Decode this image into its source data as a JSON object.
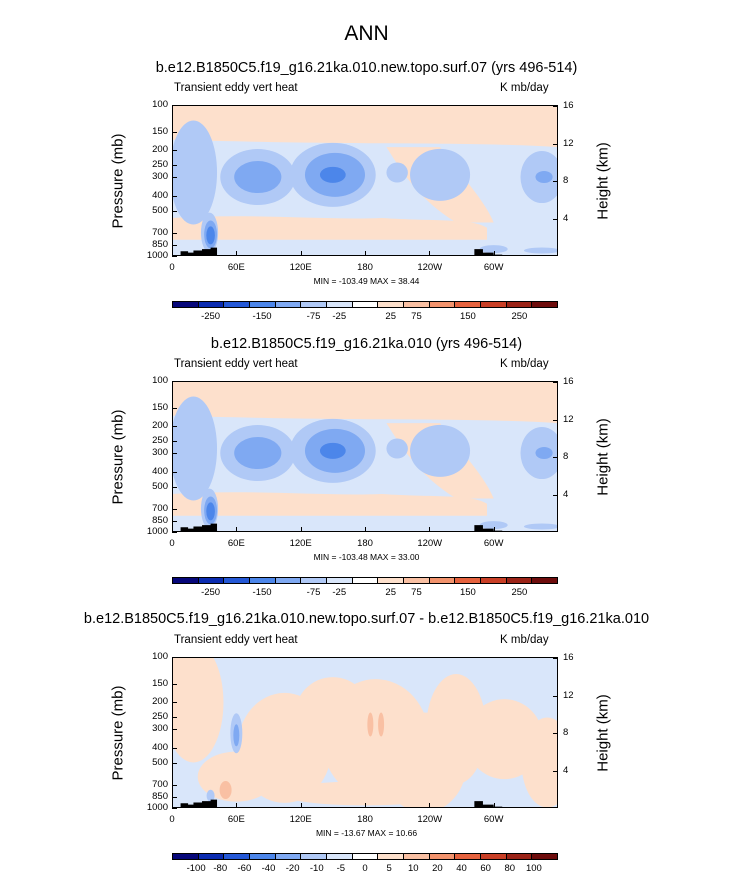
{
  "main_title": "ANN",
  "panels": [
    {
      "title": "b.e12.B1850C5.f19_g16.21ka.010.new.topo.surf.07 (yrs 496-514)",
      "left_label": "Transient eddy vert heat",
      "right_label": "K mb/day",
      "minmax": "MIN = -103.49  MAX = 38.44",
      "colorbar_labels": [
        "-250",
        "-150",
        "-75",
        "-25",
        "25",
        "75",
        "150",
        "250"
      ]
    },
    {
      "title": "b.e12.B1850C5.f19_g16.21ka.010 (yrs 496-514)",
      "left_label": "Transient eddy vert heat",
      "right_label": "K mb/day",
      "minmax": "MIN = -103.48  MAX = 33.00",
      "colorbar_labels": [
        "-250",
        "-150",
        "-75",
        "-25",
        "25",
        "75",
        "150",
        "250"
      ]
    },
    {
      "title": "b.e12.B1850C5.f19_g16.21ka.010.new.topo.surf.07 - b.e12.B1850C5.f19_g16.21ka.010",
      "left_label": "Transient eddy vert heat",
      "right_label": "K mb/day",
      "minmax": "MIN = -13.67  MAX = 10.66",
      "colorbar_labels": [
        "-100",
        "-80",
        "-60",
        "-40",
        "-20",
        "-10",
        "-5",
        "0",
        "5",
        "10",
        "20",
        "40",
        "60",
        "80",
        "100"
      ]
    }
  ],
  "axes": {
    "y_left_title": "Pressure (mb)",
    "y_right_title": "Height (km)",
    "pressure_ticks": [
      "100",
      "150",
      "200",
      "250",
      "300",
      "400",
      "500",
      "700",
      "850",
      "1000"
    ],
    "height_ticks": [
      "16",
      "12",
      "8",
      "4"
    ],
    "lon_ticks": [
      "0",
      "60E",
      "120E",
      "180",
      "120W",
      "60W"
    ]
  },
  "colors": {
    "abs_palette": [
      "#06077a",
      "#0a2bb0",
      "#2458d6",
      "#4c86ea",
      "#7fa9f2",
      "#b0c9f6",
      "#d9e6fa",
      "#ffffff",
      "#fde0cc",
      "#f9c0a3",
      "#f2936d",
      "#e5623e",
      "#c93f26",
      "#9b2317",
      "#6e0c0c"
    ],
    "neg_weak": "#d9e6fa",
    "neg_mid": "#b0c9f6",
    "neg_strong": "#7fa9f2",
    "neg_stronger": "#4c86ea",
    "pos_weak": "#fde0cc",
    "pos_mid": "#f9c0a3",
    "topography": "#000000"
  },
  "chart_data": [
    {
      "type": "heatmap",
      "title": "b.e12.B1850C5.f19_g16.21ka.010.new.topo.surf.07 (yrs 496-514)",
      "variable": "Transient eddy vert heat",
      "units": "K mb/day",
      "x": "longitude",
      "xlim": [
        0,
        360
      ],
      "ylim": [
        1000,
        100
      ],
      "yscale": "log-pressure",
      "min": -103.49,
      "max": 38.44,
      "levels": [
        -250,
        -200,
        -150,
        -100,
        -75,
        -50,
        -25,
        0,
        25,
        50,
        75,
        100,
        150,
        200,
        250
      ]
    },
    {
      "type": "heatmap",
      "title": "b.e12.B1850C5.f19_g16.21ka.010 (yrs 496-514)",
      "variable": "Transient eddy vert heat",
      "units": "K mb/day",
      "x": "longitude",
      "xlim": [
        0,
        360
      ],
      "ylim": [
        1000,
        100
      ],
      "yscale": "log-pressure",
      "min": -103.48,
      "max": 33.0,
      "levels": [
        -250,
        -200,
        -150,
        -100,
        -75,
        -50,
        -25,
        0,
        25,
        50,
        75,
        100,
        150,
        200,
        250
      ]
    },
    {
      "type": "heatmap",
      "title": "b.e12.B1850C5.f19_g16.21ka.010.new.topo.surf.07 - b.e12.B1850C5.f19_g16.21ka.010",
      "variable": "Transient eddy vert heat",
      "units": "K mb/day",
      "x": "longitude",
      "xlim": [
        0,
        360
      ],
      "ylim": [
        1000,
        100
      ],
      "yscale": "log-pressure",
      "min": -13.67,
      "max": 10.66,
      "levels": [
        -100,
        -80,
        -60,
        -40,
        -20,
        -10,
        -5,
        0,
        5,
        10,
        20,
        40,
        60,
        80,
        100
      ]
    }
  ]
}
